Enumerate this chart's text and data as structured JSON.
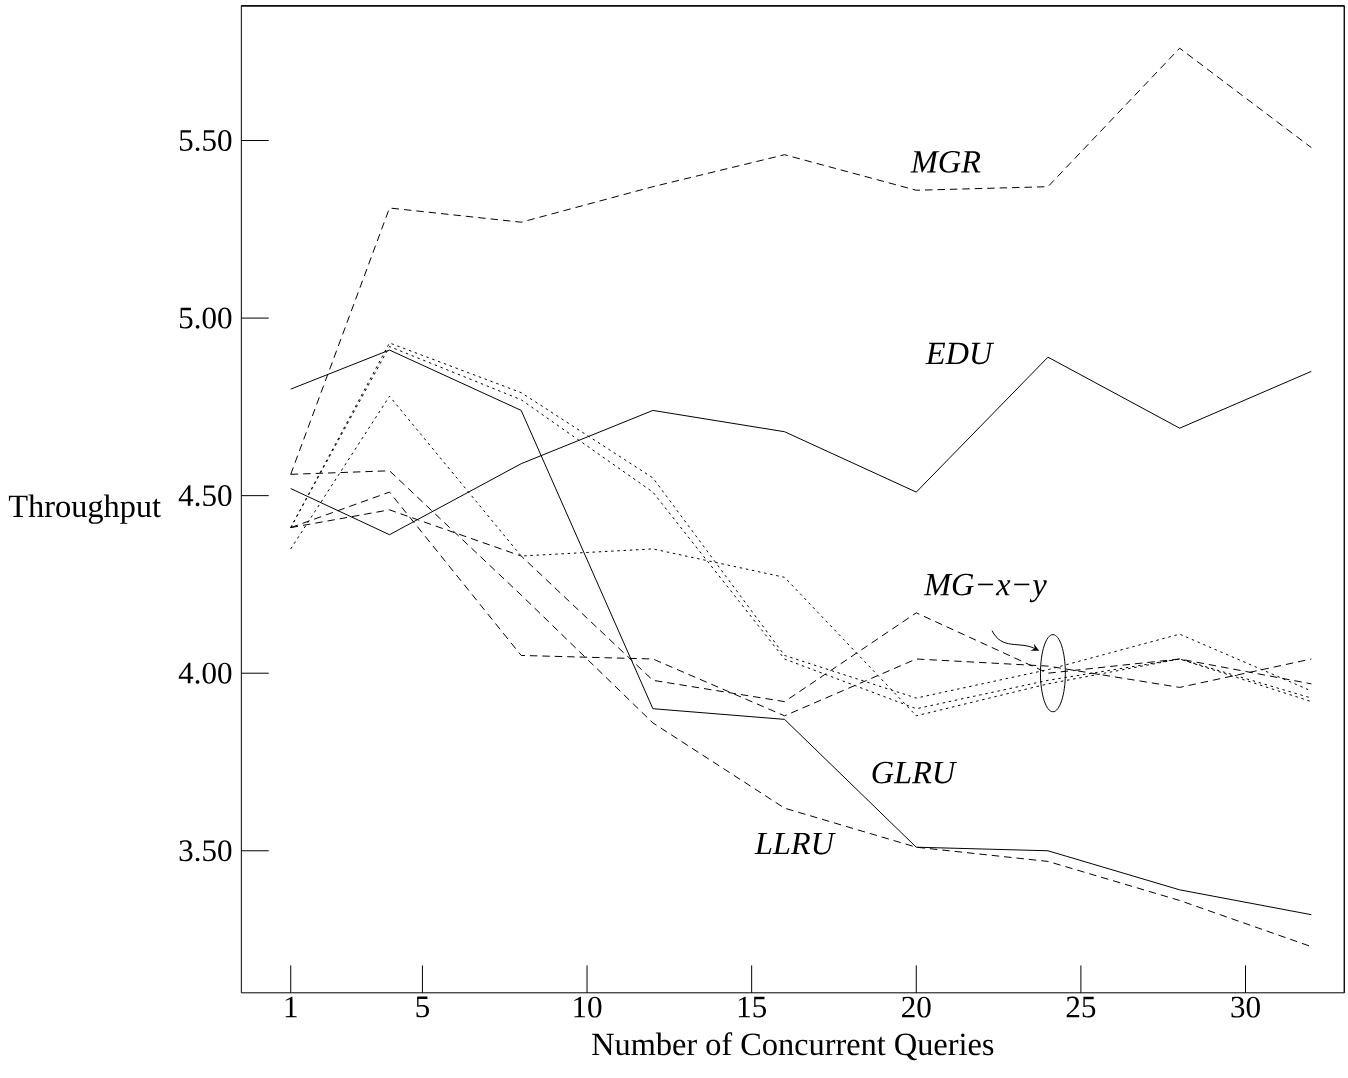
{
  "chart_data": {
    "type": "line",
    "xlabel": "Number of Concurrent Queries",
    "ylabel": "Throughput",
    "x": [
      1,
      4,
      8,
      12,
      16,
      20,
      24,
      28,
      32
    ],
    "series": [
      {
        "name": "MGR",
        "color": "#000000",
        "line_style": "dashed",
        "values": [
          4.56,
          5.31,
          5.27,
          5.37,
          5.46,
          5.36,
          5.37,
          5.76,
          5.48
        ]
      },
      {
        "name": "EDU",
        "color": "#000000",
        "line_style": "solid",
        "values": [
          4.52,
          4.39,
          4.59,
          4.74,
          4.68,
          4.51,
          4.89,
          4.69,
          4.85
        ]
      },
      {
        "name": "GLRU",
        "color": "#000000",
        "line_style": "solid",
        "values": [
          4.8,
          4.91,
          4.74,
          3.9,
          3.87,
          3.51,
          3.5,
          3.39,
          3.32
        ]
      },
      {
        "name": "LLRU",
        "color": "#000000",
        "line_style": "dashed",
        "values": [
          4.56,
          4.57,
          4.22,
          3.86,
          3.62,
          3.51,
          3.47,
          3.36,
          3.23
        ]
      },
      {
        "color": "#000000",
        "line_style": "dotted",
        "values": [
          4.41,
          4.93,
          4.79,
          4.55,
          4.05,
          3.93,
          4.01,
          4.11,
          3.95
        ]
      },
      {
        "color": "#000000",
        "line_style": "dotted",
        "values": [
          4.41,
          4.92,
          4.77,
          4.51,
          4.04,
          3.9,
          3.98,
          4.04,
          3.93
        ]
      },
      {
        "color": "#000000",
        "line_style": "dotted",
        "values": [
          4.35,
          4.78,
          4.33,
          4.35,
          4.27,
          3.88,
          3.97,
          4.04,
          3.92
        ]
      },
      {
        "color": "#000000",
        "line_style": "dashed",
        "values": [
          4.41,
          4.51,
          4.05,
          4.04,
          3.88,
          4.04,
          4.02,
          3.96,
          4.04
        ]
      },
      {
        "color": "#000000",
        "line_style": "dashed",
        "values": [
          4.41,
          4.46,
          4.33,
          3.98,
          3.92,
          4.17,
          4.0,
          4.04,
          3.97
        ]
      }
    ],
    "xlim": [
      -0.5,
      33
    ],
    "ylim": [
      3.1,
      5.88
    ],
    "xticks": [
      1,
      5,
      10,
      15,
      20,
      25,
      30
    ],
    "yticks": [
      {
        "value": 3.5,
        "label": "3.50"
      },
      {
        "value": 4.0,
        "label": "4.00"
      },
      {
        "value": 4.5,
        "label": "4.50"
      },
      {
        "value": 5.0,
        "label": "5.00"
      },
      {
        "value": 5.5,
        "label": "5.50"
      }
    ],
    "grid": false,
    "marker": "none",
    "annotations": [
      "MG−x−y"
    ]
  }
}
